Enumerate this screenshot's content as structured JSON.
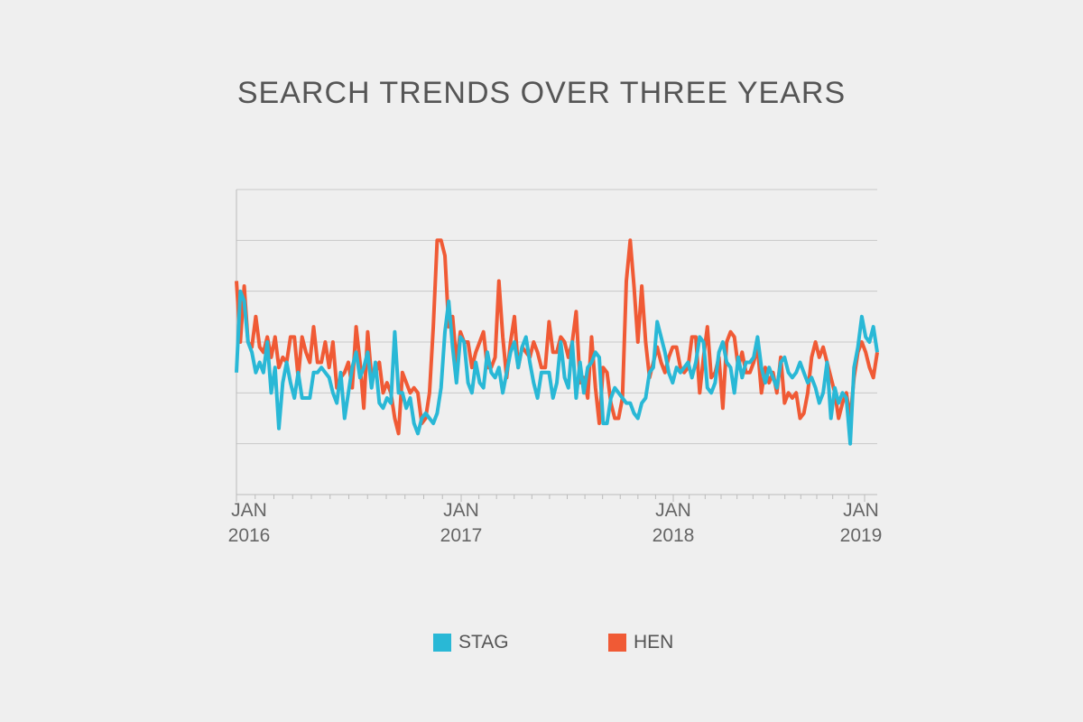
{
  "title": "SEARCH TRENDS OVER THREE YEARS",
  "colors": {
    "stag": "#29b8d6",
    "hen": "#f05a35",
    "grid": "#c8c8c8",
    "axis": "#bbbbbb",
    "text": "#555555"
  },
  "chart_data": {
    "type": "line",
    "title": "SEARCH TRENDS OVER THREE YEARS",
    "xlabel": "",
    "ylabel": "",
    "ylim": [
      0,
      60
    ],
    "grid": true,
    "legend_position": "bottom",
    "x_ticks": [
      {
        "month": "JAN",
        "year": "2016"
      },
      {
        "month": "JAN",
        "year": "2017"
      },
      {
        "month": "JAN",
        "year": "2018"
      },
      {
        "month": "JAN",
        "year": "2019"
      }
    ],
    "x_start": "2016-01-03",
    "x_step": "1 week",
    "series": [
      {
        "name": "STAG",
        "color": "#29b8d6",
        "values": [
          24,
          40,
          38,
          30,
          28,
          24,
          26,
          24,
          30,
          20,
          25,
          13,
          22,
          26,
          22,
          19,
          24,
          19,
          19,
          19,
          24,
          24,
          25,
          24,
          23,
          20,
          18,
          24,
          15,
          20,
          25,
          28,
          23,
          25,
          28,
          21,
          26,
          18,
          17,
          19,
          18,
          32,
          20,
          20,
          17,
          19,
          14,
          12,
          15,
          16,
          15,
          14,
          16,
          21,
          32,
          38,
          29,
          22,
          31,
          30,
          22,
          20,
          26,
          22,
          21,
          28,
          24,
          23,
          25,
          20,
          24,
          28,
          30,
          25,
          29,
          31,
          26,
          22,
          19,
          24,
          24,
          24,
          19,
          22,
          30,
          23,
          21,
          30,
          19,
          26,
          20,
          25,
          26,
          28,
          27,
          14,
          14,
          19,
          21,
          20,
          19,
          18,
          18,
          16,
          15,
          18,
          19,
          24,
          25,
          34,
          31,
          28,
          24,
          22,
          25,
          24,
          25,
          26,
          23,
          26,
          31,
          30,
          21,
          20,
          22,
          28,
          30,
          26,
          25,
          20,
          27,
          23,
          26,
          26,
          27,
          31,
          25,
          22,
          25,
          23,
          21,
          26,
          27,
          24,
          23,
          24,
          26,
          24,
          22,
          23,
          21,
          18,
          20,
          26,
          15,
          21,
          18,
          20,
          19,
          10,
          25,
          29,
          35,
          31,
          30,
          33,
          28
        ],
        "style": "solid"
      },
      {
        "name": "HEN",
        "color": "#f05a35",
        "values": [
          42,
          30,
          41,
          30,
          29,
          35,
          29,
          28,
          31,
          27,
          31,
          25,
          27,
          26,
          31,
          31,
          23,
          31,
          28,
          26,
          33,
          26,
          26,
          30,
          25,
          30,
          21,
          23,
          24,
          26,
          21,
          33,
          26,
          17,
          32,
          23,
          24,
          26,
          20,
          22,
          20,
          15,
          12,
          24,
          22,
          20,
          21,
          20,
          14,
          15,
          20,
          33,
          50,
          50,
          47,
          33,
          35,
          26,
          32,
          30,
          30,
          25,
          28,
          30,
          32,
          25,
          25,
          27,
          42,
          31,
          23,
          30,
          35,
          25,
          29,
          28,
          27,
          30,
          28,
          25,
          25,
          34,
          28,
          28,
          31,
          30,
          27,
          30,
          36,
          22,
          23,
          19,
          31,
          21,
          14,
          25,
          24,
          18,
          15,
          15,
          19,
          42,
          50,
          41,
          30,
          41,
          30,
          23,
          26,
          29,
          26,
          24,
          27,
          29,
          29,
          25,
          24,
          25,
          31,
          31,
          20,
          27,
          33,
          23,
          24,
          27,
          17,
          30,
          32,
          31,
          25,
          28,
          24,
          24,
          26,
          29,
          20,
          25,
          22,
          24,
          20,
          27,
          18,
          20,
          19,
          20,
          15,
          16,
          20,
          27,
          30,
          27,
          29,
          26,
          23,
          20,
          15,
          18,
          20,
          15,
          23,
          28,
          30,
          28,
          25,
          23,
          28
        ]
      }
    ]
  },
  "legend": [
    {
      "label": "STAG",
      "color": "#29b8d6"
    },
    {
      "label": "HEN",
      "color": "#f05a35"
    }
  ]
}
